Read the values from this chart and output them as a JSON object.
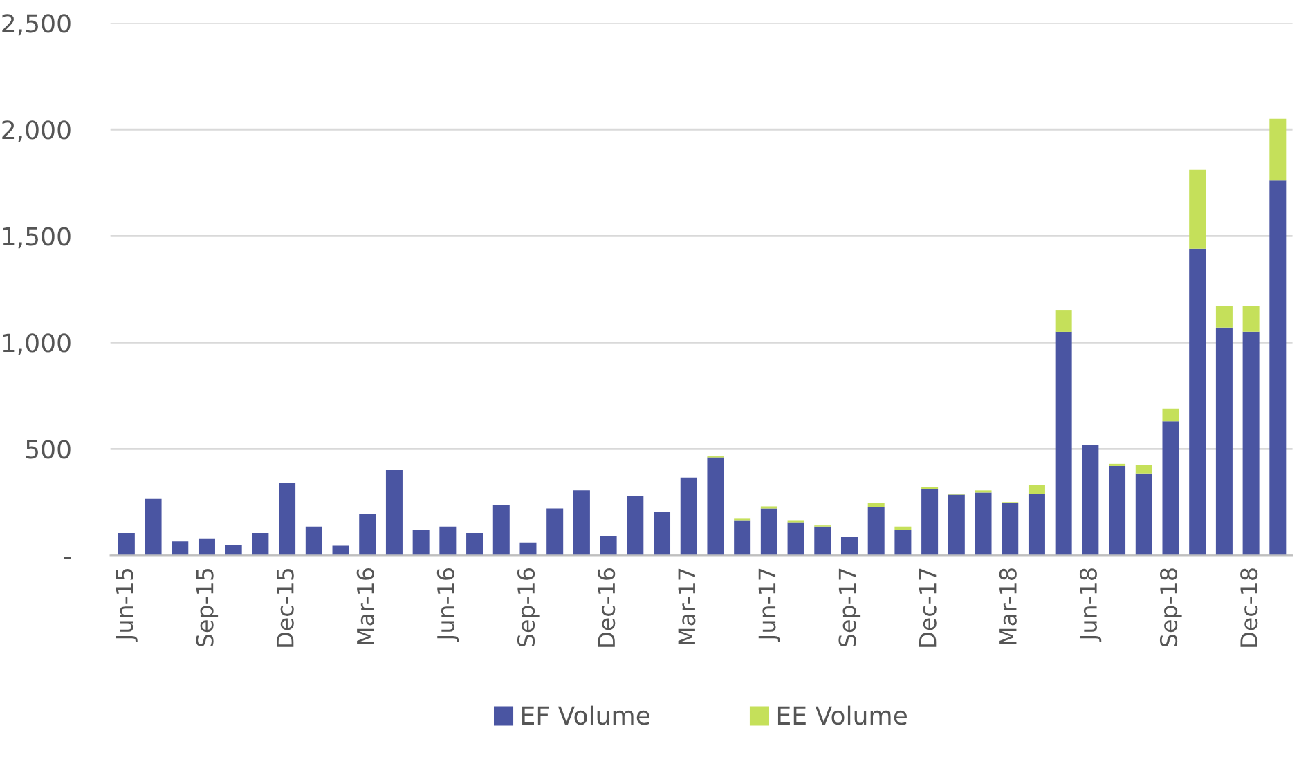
{
  "chart_data": {
    "type": "bar",
    "stacked": true,
    "categories": [
      "Jun-15",
      null,
      null,
      "Sep-15",
      null,
      null,
      "Dec-15",
      null,
      null,
      "Mar-16",
      null,
      null,
      "Jun-16",
      null,
      null,
      "Sep-16",
      null,
      null,
      "Dec-16",
      null,
      null,
      "Mar-17",
      null,
      null,
      "Jun-17",
      null,
      null,
      "Sep-17",
      null,
      null,
      "Dec-17",
      null,
      null,
      "Mar-18",
      null,
      null,
      "Jun-18",
      null,
      null,
      "Sep-18",
      null,
      null,
      "Dec-18",
      null
    ],
    "series": [
      {
        "name": "EF Volume",
        "color": "#4a55a2",
        "values": [
          105,
          265,
          65,
          80,
          50,
          105,
          340,
          135,
          45,
          195,
          400,
          120,
          135,
          105,
          235,
          60,
          220,
          305,
          90,
          280,
          205,
          365,
          460,
          165,
          220,
          155,
          135,
          85,
          225,
          120,
          310,
          285,
          295,
          245,
          290,
          1050,
          520,
          420,
          385,
          630,
          1440,
          1070,
          1050,
          1760
        ]
      },
      {
        "name": "EE Volume",
        "color": "#c5e05a",
        "values": [
          0,
          0,
          0,
          0,
          0,
          0,
          0,
          0,
          0,
          0,
          0,
          0,
          0,
          0,
          0,
          0,
          0,
          0,
          0,
          0,
          0,
          0,
          5,
          10,
          10,
          10,
          5,
          0,
          20,
          15,
          10,
          5,
          10,
          5,
          40,
          100,
          0,
          10,
          40,
          60,
          370,
          100,
          120,
          290
        ]
      }
    ],
    "ylim": [
      0,
      2500
    ],
    "yticks": [
      {
        "value": 0,
        "label": "-"
      },
      500,
      {
        "value": 1000,
        "label": "1,000"
      },
      {
        "value": 1500,
        "label": "1,500"
      },
      {
        "value": 2000,
        "label": "2,000"
      },
      {
        "value": 2500,
        "label": "2,500"
      }
    ],
    "grid": "y",
    "legend": "bottom"
  }
}
